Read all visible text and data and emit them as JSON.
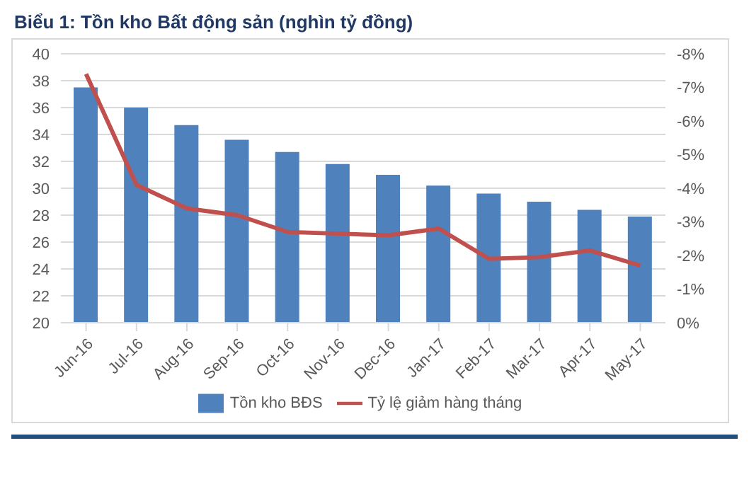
{
  "chart_data": {
    "type": "bar",
    "title": "Biểu 1: Tồn kho Bất động sản (nghìn tỷ đồng)",
    "categories": [
      "Jun-16",
      "Jul-16",
      "Aug-16",
      "Sep-16",
      "Oct-16",
      "Nov-16",
      "Dec-16",
      "Jan-17",
      "Feb-17",
      "Mar-17",
      "Apr-17",
      "May-17"
    ],
    "series": [
      {
        "name": "Tồn kho BĐS",
        "color": "#4f81bd",
        "values": [
          37.5,
          36.0,
          34.7,
          33.6,
          32.7,
          31.8,
          31.0,
          30.2,
          29.6,
          29.0,
          28.4,
          27.9
        ]
      },
      {
        "name": "Tỷ lệ giảm hàng tháng",
        "type": "line",
        "axis": "y2",
        "color": "#c0504d",
        "values": [
          -7.4,
          -4.1,
          -3.4,
          -3.2,
          -2.7,
          -2.65,
          -2.6,
          -2.8,
          -1.9,
          -1.95,
          -2.15,
          -1.7
        ]
      }
    ],
    "ylim": [
      20,
      40
    ],
    "yticks": [
      20,
      22,
      24,
      26,
      28,
      30,
      32,
      34,
      36,
      38,
      40
    ],
    "y2lim": [
      0,
      -8
    ],
    "y2ticks": [
      {
        "value": 0,
        "label": "0%"
      },
      {
        "value": -1,
        "label": "-1%"
      },
      {
        "value": -2,
        "label": "-2%"
      },
      {
        "value": -3,
        "label": "-3%"
      },
      {
        "value": -4,
        "label": "-4%"
      },
      {
        "value": -5,
        "label": "-5%"
      },
      {
        "value": -6,
        "label": "-6%"
      },
      {
        "value": -7,
        "label": "-7%"
      },
      {
        "value": -8,
        "label": "-8%"
      }
    ],
    "grid": "y",
    "legend": "bottom",
    "marker": "none",
    "line_style": "solid"
  }
}
